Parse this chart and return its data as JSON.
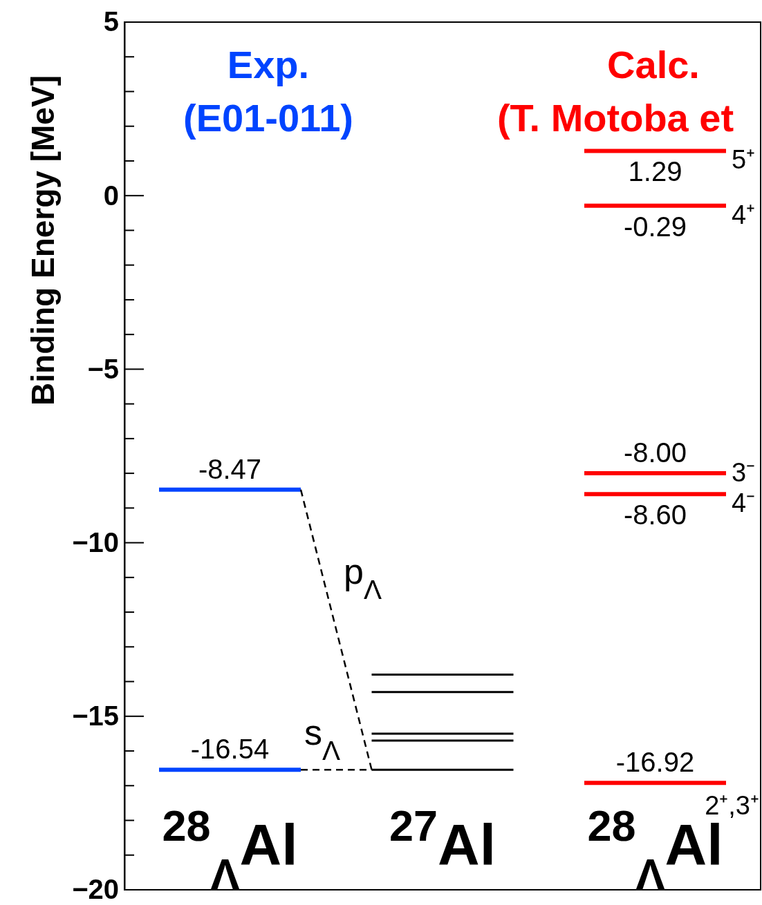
{
  "chart_data": {
    "type": "line",
    "ylabel": "Binding Energy [MeV]",
    "ylim": [
      -20,
      5
    ],
    "categories": [
      null,
      "$^{28}$$_{Λ}$Al",
      null,
      null,
      "$^{27}$Al",
      null,
      null,
      "$^{28}$$_{Λ}$Al",
      null
    ],
    "yticks": [
      5,
      0,
      {
        "value": -5,
        "label": "−5"
      },
      {
        "value": -10,
        "label": "−10"
      },
      {
        "value": -15,
        "label": "−15"
      },
      {
        "value": -20,
        "label": "−20"
      }
    ],
    "marker": "none",
    "series": [
      {
        "color": "#0044ff",
        "values": [
          -8.47,
          -8.47,
          -8.47,
          null,
          null,
          null,
          null,
          null,
          null
        ],
        "value_labels": [
          null,
          "-8.47",
          null,
          null,
          null,
          null,
          null,
          null,
          null
        ]
      },
      {
        "color": "#0044ff",
        "values": [
          -16.54,
          -16.54,
          -16.54,
          null,
          null,
          null,
          null,
          null,
          null
        ],
        "value_labels": [
          null,
          "-16.54",
          null,
          null,
          null,
          null,
          null,
          null,
          null
        ]
      },
      {
        "color": "#000000",
        "values": [
          null,
          null,
          null,
          -13.8,
          -13.8,
          -13.8,
          null,
          null,
          null
        ]
      },
      {
        "color": "#000000",
        "values": [
          null,
          null,
          null,
          -14.3,
          -14.3,
          -14.3,
          null,
          null,
          null
        ]
      },
      {
        "color": "#000000",
        "values": [
          null,
          null,
          null,
          -15.5,
          -15.5,
          -15.5,
          null,
          null,
          null
        ]
      },
      {
        "color": "#000000",
        "values": [
          null,
          null,
          null,
          -15.7,
          -15.7,
          -15.7,
          null,
          null,
          null
        ]
      },
      {
        "color": "#000000",
        "values": [
          null,
          null,
          null,
          -16.54,
          -16.54,
          -16.54,
          null,
          null,
          null
        ]
      },
      {
        "color": "#ff0000",
        "values": [
          null,
          null,
          null,
          null,
          null,
          null,
          1.29,
          1.29,
          1.29
        ],
        "value_labels": [
          null,
          null,
          null,
          null,
          null,
          null,
          null,
          "1.29",
          null
        ]
      },
      {
        "color": "#ff0000",
        "values": [
          null,
          null,
          null,
          null,
          null,
          null,
          -0.29,
          -0.29,
          -0.29
        ],
        "value_labels": [
          null,
          null,
          null,
          null,
          null,
          null,
          null,
          "-0.29",
          null
        ]
      },
      {
        "color": "#ff0000",
        "values": [
          null,
          null,
          null,
          null,
          null,
          null,
          -8.0,
          -8.0,
          -8.0
        ],
        "value_labels": [
          null,
          null,
          null,
          null,
          null,
          null,
          null,
          "-8.00",
          null
        ]
      },
      {
        "color": "#ff0000",
        "values": [
          null,
          null,
          null,
          null,
          null,
          null,
          -8.6,
          -8.6,
          -8.6
        ],
        "value_labels": [
          null,
          null,
          null,
          null,
          null,
          null,
          null,
          "-8.60",
          null
        ]
      },
      {
        "color": "#ff0000",
        "values": [
          null,
          null,
          null,
          null,
          null,
          null,
          -16.92,
          -16.92,
          -16.92
        ],
        "value_labels": [
          null,
          null,
          null,
          null,
          null,
          null,
          null,
          "-16.92",
          null
        ]
      },
      {
        "color": "#000000",
        "line_style": "dashed",
        "values": [
          null,
          null,
          -8.47,
          -16.54,
          null,
          null,
          null,
          null,
          null
        ]
      },
      {
        "color": "#000000",
        "line_style": "dashed",
        "values": [
          null,
          null,
          -16.54,
          -16.54,
          null,
          null,
          null,
          null,
          null
        ]
      }
    ],
    "annotations": [
      "Exp.",
      "(E01-011)",
      "Calc.",
      "(T. Motoba et",
      "5⁺",
      "4⁺",
      "3⁻",
      "4⁻",
      "2⁺,3⁺",
      "p$_{Λ}$",
      "s$_{Λ}$"
    ]
  }
}
